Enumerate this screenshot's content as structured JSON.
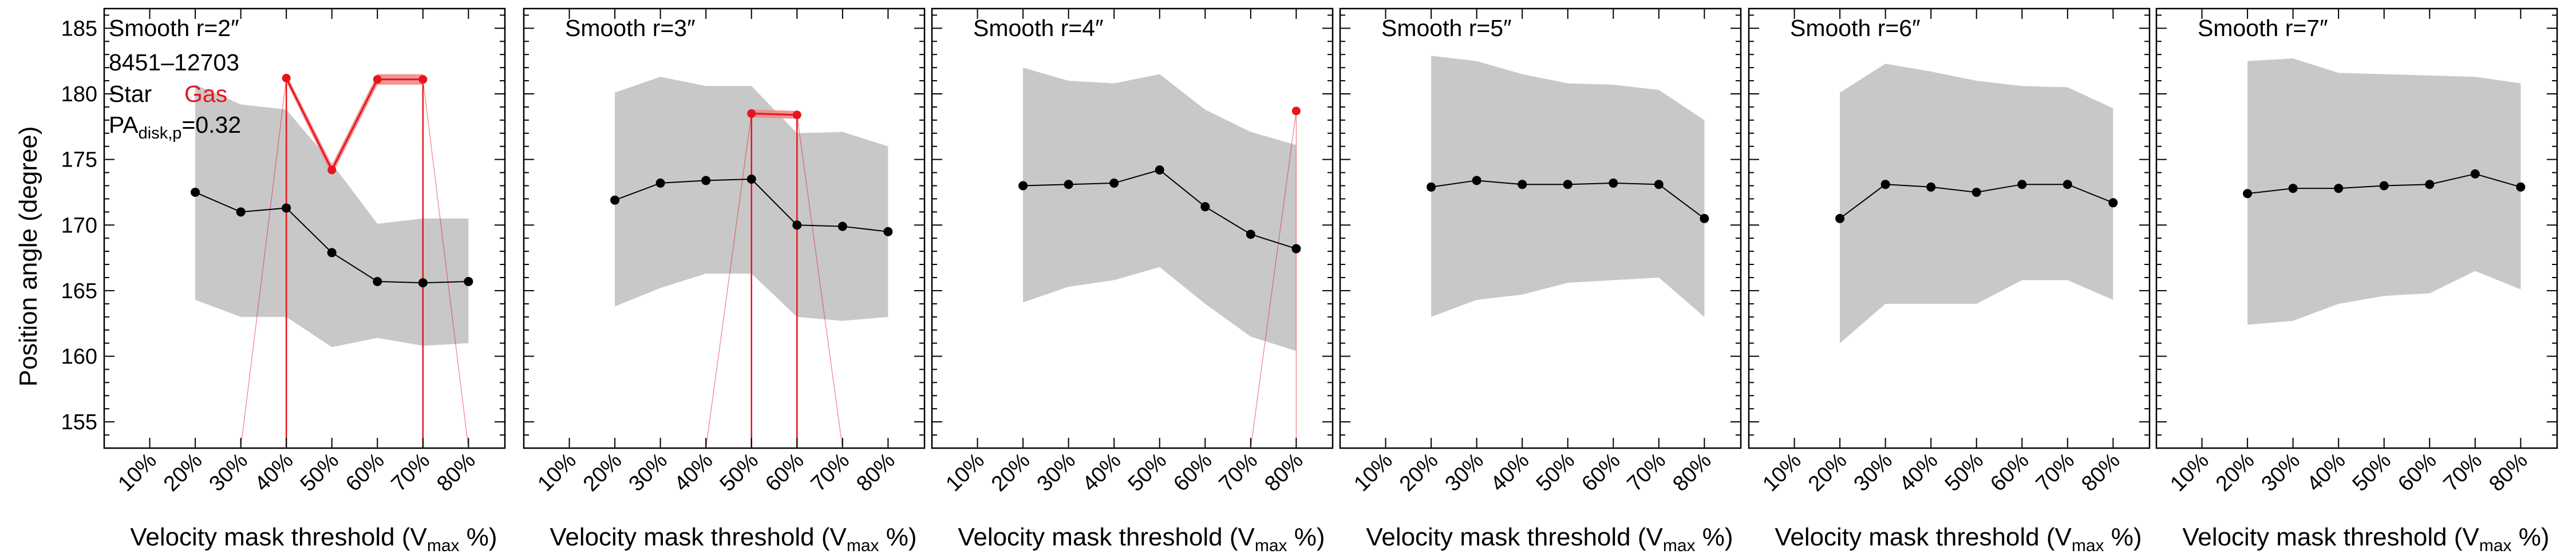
{
  "figure": {
    "ylabel": "Position angle (degree)",
    "xlabel_prefix": "Velocity mask threshold (V",
    "xlabel_sub": "max",
    "xlabel_suffix": " %)",
    "galaxy_id": "8451–12703",
    "legend_star": "Star",
    "legend_gas": "Gas",
    "pa_label_prefix": "PA",
    "pa_label_sub": "disk,p",
    "pa_label_suffix": "=0.32"
  },
  "colors": {
    "star": "#000000",
    "gas": "#e8141c",
    "band": "#c8c8c8",
    "gas_band": "#f08a8a"
  },
  "chart_data": [
    {
      "type": "line",
      "title": "Smooth r=2″",
      "x_tick_labels": [
        "10%",
        "20%",
        "30%",
        "40%",
        "50%",
        "60%",
        "70%",
        "80%"
      ],
      "x_ticks": [
        10,
        20,
        30,
        40,
        50,
        60,
        70,
        80
      ],
      "xlim": [
        0,
        88
      ],
      "ylim": [
        153,
        186.5
      ],
      "y_ticks": [
        155,
        160,
        165,
        170,
        175,
        180,
        185
      ],
      "star": {
        "x": [
          20,
          30,
          40,
          50,
          60,
          70,
          80
        ],
        "y": [
          172.5,
          171.0,
          171.3,
          167.9,
          165.7,
          165.6,
          165.7
        ],
        "band_upper": [
          180.7,
          179.2,
          178.8,
          174.7,
          170.1,
          170.5,
          170.5
        ],
        "band_lower": [
          164.3,
          163.0,
          163.0,
          160.7,
          161.4,
          160.8,
          161.0
        ]
      },
      "gas": {
        "x": [
          40,
          50,
          60,
          70
        ],
        "y": [
          181.2,
          174.2,
          181.1,
          181.1
        ],
        "band_upper": [
          181.5,
          174.6,
          181.5,
          181.5
        ],
        "band_lower": [
          180.9,
          173.8,
          180.7,
          180.7
        ],
        "drop_lines_to_axis": [
          30,
          40,
          70,
          80
        ]
      }
    },
    {
      "type": "line",
      "title": "Smooth r=3″",
      "x_tick_labels": [
        "10%",
        "20%",
        "30%",
        "40%",
        "50%",
        "60%",
        "70%",
        "80%"
      ],
      "x_ticks": [
        10,
        20,
        30,
        40,
        50,
        60,
        70,
        80
      ],
      "xlim": [
        0,
        88
      ],
      "ylim": [
        153,
        186.5
      ],
      "star": {
        "x": [
          20,
          30,
          40,
          50,
          60,
          70,
          80
        ],
        "y": [
          171.9,
          173.2,
          173.4,
          173.5,
          170.0,
          169.9,
          169.5
        ],
        "band_upper": [
          180.1,
          181.3,
          180.6,
          180.6,
          177.0,
          177.1,
          176.0
        ],
        "band_lower": [
          163.8,
          165.2,
          166.3,
          166.3,
          163.0,
          162.7,
          163.0
        ]
      },
      "gas": {
        "x": [
          50,
          60
        ],
        "y": [
          178.5,
          178.4
        ],
        "band_upper": [
          178.8,
          178.7
        ],
        "band_lower": [
          178.2,
          178.1
        ],
        "drop_lines_to_axis": [
          40,
          50,
          60,
          70
        ]
      }
    },
    {
      "type": "line",
      "title": "Smooth r=4″",
      "x_tick_labels": [
        "10%",
        "20%",
        "30%",
        "40%",
        "50%",
        "60%",
        "70%",
        "80%"
      ],
      "x_ticks": [
        10,
        20,
        30,
        40,
        50,
        60,
        70,
        80
      ],
      "xlim": [
        0,
        88
      ],
      "ylim": [
        153,
        186.5
      ],
      "star": {
        "x": [
          20,
          30,
          40,
          50,
          60,
          70,
          80
        ],
        "y": [
          173.0,
          173.1,
          173.2,
          174.2,
          171.4,
          169.3,
          168.2
        ],
        "band_upper": [
          182.0,
          181.0,
          180.8,
          181.5,
          178.8,
          177.1,
          176.1
        ],
        "band_lower": [
          164.1,
          165.3,
          165.8,
          166.8,
          164.0,
          161.5,
          160.4
        ]
      },
      "gas": {
        "x": [
          80
        ],
        "y": [
          178.7
        ],
        "band_upper": [
          178.9
        ],
        "band_lower": [
          178.5
        ],
        "drop_lines_to_axis": [
          70,
          80
        ]
      }
    },
    {
      "type": "line",
      "title": "Smooth r=5″",
      "x_tick_labels": [
        "10%",
        "20%",
        "30%",
        "40%",
        "50%",
        "60%",
        "70%",
        "80%"
      ],
      "x_ticks": [
        10,
        20,
        30,
        40,
        50,
        60,
        70,
        80
      ],
      "xlim": [
        0,
        88
      ],
      "ylim": [
        153,
        186.5
      ],
      "star": {
        "x": [
          20,
          30,
          40,
          50,
          60,
          70,
          80
        ],
        "y": [
          172.9,
          173.4,
          173.1,
          173.1,
          173.2,
          173.1,
          170.5
        ],
        "band_upper": [
          182.9,
          182.5,
          181.5,
          180.8,
          180.7,
          180.3,
          178.0
        ],
        "band_lower": [
          163.0,
          164.3,
          164.7,
          165.6,
          165.8,
          166.0,
          163.0
        ]
      },
      "gas": null
    },
    {
      "type": "line",
      "title": "Smooth r=6″",
      "x_tick_labels": [
        "10%",
        "20%",
        "30%",
        "40%",
        "50%",
        "60%",
        "70%",
        "80%"
      ],
      "x_ticks": [
        10,
        20,
        30,
        40,
        50,
        60,
        70,
        80
      ],
      "xlim": [
        0,
        88
      ],
      "ylim": [
        153,
        186.5
      ],
      "star": {
        "x": [
          20,
          30,
          40,
          50,
          60,
          70,
          80
        ],
        "y": [
          170.5,
          173.1,
          172.9,
          172.5,
          173.1,
          173.1,
          171.7
        ],
        "band_upper": [
          180.1,
          182.3,
          181.7,
          181.0,
          180.6,
          180.5,
          178.9
        ],
        "band_lower": [
          161.0,
          164.0,
          164.0,
          164.0,
          165.8,
          165.8,
          164.3
        ]
      },
      "gas": null
    },
    {
      "type": "line",
      "title": "Smooth r=7″",
      "x_tick_labels": [
        "10%",
        "20%",
        "30%",
        "40%",
        "50%",
        "60%",
        "70%",
        "80%"
      ],
      "x_ticks": [
        10,
        20,
        30,
        40,
        50,
        60,
        70,
        80
      ],
      "xlim": [
        0,
        88
      ],
      "ylim": [
        153,
        186.5
      ],
      "star": {
        "x": [
          20,
          30,
          40,
          50,
          60,
          70,
          80
        ],
        "y": [
          172.4,
          172.8,
          172.8,
          173.0,
          173.1,
          173.9,
          172.9
        ],
        "band_upper": [
          182.5,
          182.7,
          181.6,
          181.5,
          181.4,
          181.3,
          180.8
        ],
        "band_lower": [
          162.4,
          162.7,
          164.0,
          164.6,
          164.8,
          166.5,
          165.1
        ]
      },
      "gas": null
    }
  ]
}
